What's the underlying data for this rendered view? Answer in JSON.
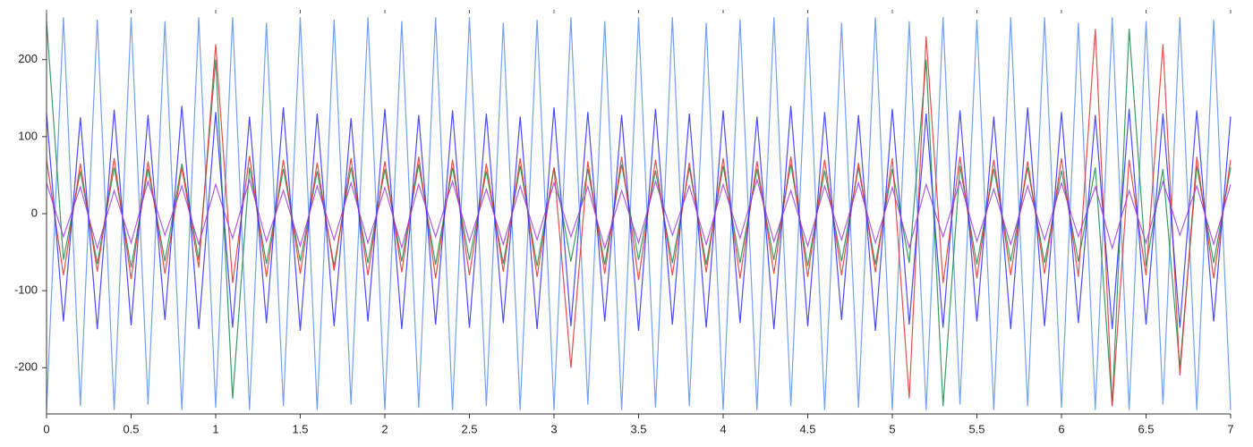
{
  "chart_data": {
    "type": "line",
    "xlim": [
      0,
      7
    ],
    "xticks": [
      0,
      0.5,
      1,
      1.5,
      2,
      2.5,
      3,
      3.5,
      4,
      4.5,
      5,
      5.5,
      6,
      6.5,
      7
    ],
    "ylim": [
      -260,
      260
    ],
    "yticks": [
      -200,
      -100,
      0,
      100,
      200
    ],
    "x": [
      0,
      0.1,
      0.2,
      0.3,
      0.4,
      0.5,
      0.6,
      0.7,
      0.8,
      0.9,
      1,
      1.1,
      1.2,
      1.3,
      1.4,
      1.5,
      1.6,
      1.7,
      1.8,
      1.9,
      2,
      2.1,
      2.2,
      2.3,
      2.4,
      2.5,
      2.6,
      2.7,
      2.8,
      2.9,
      3,
      3.1,
      3.2,
      3.3,
      3.4,
      3.5,
      3.6,
      3.7,
      3.8,
      3.9,
      4,
      4.1,
      4.2,
      4.3,
      4.4,
      4.5,
      4.6,
      4.7,
      4.8,
      4.9,
      5,
      5.1,
      5.2,
      5.3,
      5.4,
      5.5,
      5.6,
      5.7,
      5.8,
      5.9,
      6,
      6.1,
      6.2,
      6.3,
      6.4,
      6.5,
      6.6,
      6.7,
      6.8,
      6.9,
      7
    ],
    "series": [
      {
        "color": "#5b8ff0",
        "values": [
          -255,
          255,
          -250,
          252,
          -255,
          255,
          -248,
          250,
          -255,
          255,
          -252,
          255,
          -255,
          248,
          -250,
          255,
          -255,
          252,
          -248,
          255,
          -255,
          250,
          -252,
          255,
          -255,
          255,
          -250,
          248,
          -255,
          252,
          -255,
          255,
          -248,
          250,
          -255,
          255,
          -252,
          255,
          -250,
          248,
          -255,
          252,
          -255,
          255,
          -250,
          255,
          -255,
          248,
          -252,
          255,
          -255,
          250,
          -255,
          255,
          -248,
          252,
          -255,
          255,
          -250,
          255,
          -252,
          248,
          -255,
          255,
          -255,
          250,
          -248,
          255,
          -255,
          252,
          -255
        ]
      },
      {
        "color": "#1a8a4a",
        "values": [
          250,
          -60,
          55,
          -65,
          60,
          -70,
          58,
          -62,
          65,
          -60,
          200,
          -240,
          60,
          -65,
          58,
          -62,
          55,
          -68,
          60,
          -64,
          58,
          -62,
          64,
          -66,
          60,
          -60,
          55,
          -65,
          62,
          -68,
          60,
          -62,
          58,
          -66,
          64,
          -60,
          56,
          -64,
          60,
          -66,
          62,
          -64,
          58,
          -60,
          64,
          -68,
          56,
          -62,
          60,
          -66,
          58,
          -64,
          200,
          -250,
          62,
          -66,
          58,
          -62,
          60,
          -64,
          56,
          -62,
          60,
          -250,
          240,
          -68,
          58,
          -200,
          62,
          -64,
          60
        ]
      },
      {
        "color": "#e03030",
        "values": [
          70,
          -80,
          65,
          -75,
          72,
          -85,
          68,
          -78,
          60,
          -70,
          220,
          -90,
          75,
          -82,
          70,
          -78,
          66,
          -74,
          72,
          -80,
          68,
          -76,
          74,
          -84,
          70,
          -80,
          65,
          -75,
          72,
          -82,
          60,
          -200,
          68,
          -78,
          74,
          -86,
          70,
          -80,
          66,
          -76,
          72,
          -84,
          68,
          -78,
          74,
          -82,
          70,
          -80,
          66,
          -76,
          72,
          -240,
          230,
          -90,
          74,
          -84,
          70,
          -80,
          68,
          -78,
          72,
          -82,
          240,
          -250,
          70,
          -80,
          220,
          -210,
          74,
          -84,
          70
        ]
      },
      {
        "color": "#2a2aff",
        "values": [
          130,
          -140,
          125,
          -150,
          135,
          -145,
          128,
          -138,
          140,
          -150,
          132,
          -148,
          126,
          -142,
          138,
          -152,
          130,
          -146,
          124,
          -140,
          136,
          -150,
          128,
          -144,
          134,
          -148,
          130,
          -142,
          126,
          -150,
          138,
          -146,
          132,
          -140,
          128,
          -152,
          136,
          -144,
          130,
          -148,
          134,
          -142,
          126,
          -150,
          140,
          -146,
          132,
          -138,
          128,
          -152,
          136,
          -144,
          130,
          -148,
          134,
          -140,
          126,
          -150,
          138,
          -146,
          132,
          -142,
          128,
          -150,
          136,
          -144,
          130,
          -148,
          134,
          -140,
          126
        ]
      },
      {
        "color": "#a040e0",
        "values": [
          40,
          -30,
          35,
          -45,
          30,
          -38,
          42,
          -28,
          36,
          -40,
          38,
          -32,
          44,
          -36,
          30,
          -42,
          36,
          -34,
          40,
          -38,
          34,
          -44,
          38,
          -30,
          42,
          -36,
          32,
          -40,
          36,
          -34,
          40,
          -30,
          35,
          -45,
          30,
          -38,
          42,
          -28,
          36,
          -40,
          38,
          -32,
          44,
          -36,
          30,
          -42,
          36,
          -34,
          40,
          -38,
          34,
          -44,
          38,
          -30,
          42,
          -36,
          32,
          -40,
          36,
          -34,
          40,
          -30,
          35,
          -45,
          30,
          -38,
          42,
          -28,
          36,
          -40,
          38
        ]
      }
    ]
  }
}
